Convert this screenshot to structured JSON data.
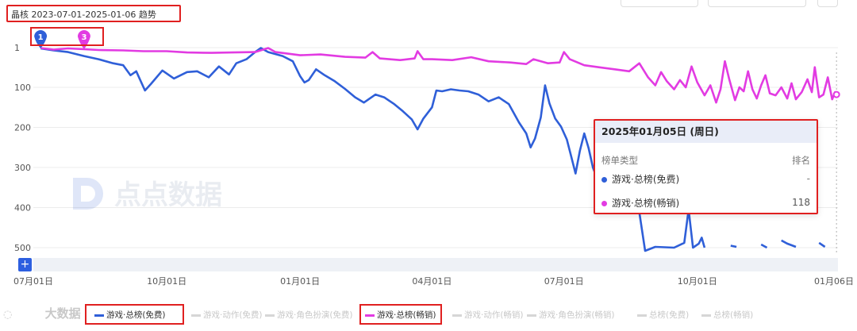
{
  "header": {
    "title": "晶核 2023-07-01-2025-01-06 趋势"
  },
  "markers": [
    {
      "label": "1",
      "color": "#2f5fd8"
    },
    {
      "label": "3",
      "color": "#e23be2"
    }
  ],
  "watermark": {
    "logo_text": "点点数据",
    "bottom_text": "大数据"
  },
  "tooltip": {
    "date": "2025年01月05日 (周日)",
    "col_type": "榜单类型",
    "col_rank": "排名",
    "rows": [
      {
        "name": "游戏·总榜(免费)",
        "value": "-",
        "color": "#2f5fd8"
      },
      {
        "name": "游戏·总榜(畅销)",
        "value": "118",
        "color": "#e23be2"
      }
    ]
  },
  "slider": {
    "plus": "+"
  },
  "legend": [
    {
      "label": "游戏·总榜(免费)",
      "active": true,
      "color": "#2f5fd8"
    },
    {
      "label": "游戏·动作(免费)",
      "active": false
    },
    {
      "label": "游戏·角色扮演(免费)",
      "active": false
    },
    {
      "label": "游戏·总榜(畅销)",
      "active": true,
      "color": "#e23be2"
    },
    {
      "label": "游戏·动作(畅销)",
      "active": false
    },
    {
      "label": "游戏·角色扮演(畅销)",
      "active": false
    },
    {
      "label": "总榜(免费)",
      "active": false
    },
    {
      "label": "总榜(畅销)",
      "active": false
    }
  ],
  "chart_data": {
    "type": "line",
    "y_inverted": true,
    "ylim": [
      1,
      500
    ],
    "y_ticks": [
      "1",
      "100",
      "200",
      "300",
      "400",
      "500"
    ],
    "x_range": [
      "2023-07-01",
      "2025-01-06"
    ],
    "x_ticks": [
      {
        "label": "07月01日",
        "date": "2023-07-01"
      },
      {
        "label": "10月01日",
        "date": "2023-10-01"
      },
      {
        "label": "01月01日",
        "date": "2024-01-01"
      },
      {
        "label": "04月01日",
        "date": "2024-04-01"
      },
      {
        "label": "07月01日",
        "date": "2024-07-01"
      },
      {
        "label": "10月01日",
        "date": "2024-10-01"
      },
      {
        "label": "01月06日",
        "date": "2025-01-06"
      }
    ],
    "series": [
      {
        "name": "游戏·总榜(免费)",
        "color": "#2f5fd8",
        "points": [
          [
            "2023-07-06",
            3
          ],
          [
            "2023-07-15",
            8
          ],
          [
            "2023-07-25",
            12
          ],
          [
            "2023-08-05",
            22
          ],
          [
            "2023-08-15",
            30
          ],
          [
            "2023-08-25",
            40
          ],
          [
            "2023-09-01",
            45
          ],
          [
            "2023-09-06",
            70
          ],
          [
            "2023-09-10",
            60
          ],
          [
            "2023-09-16",
            108
          ],
          [
            "2023-09-20",
            92
          ],
          [
            "2023-09-28",
            58
          ],
          [
            "2023-10-06",
            78
          ],
          [
            "2023-10-15",
            62
          ],
          [
            "2023-10-22",
            60
          ],
          [
            "2023-10-30",
            75
          ],
          [
            "2023-11-06",
            48
          ],
          [
            "2023-11-13",
            68
          ],
          [
            "2023-11-18",
            40
          ],
          [
            "2023-11-25",
            30
          ],
          [
            "2023-12-01",
            12
          ],
          [
            "2023-12-05",
            2
          ],
          [
            "2023-12-10",
            12
          ],
          [
            "2023-12-20",
            22
          ],
          [
            "2023-12-27",
            35
          ],
          [
            "2024-01-01",
            72
          ],
          [
            "2024-01-04",
            88
          ],
          [
            "2024-01-07",
            82
          ],
          [
            "2024-01-12",
            55
          ],
          [
            "2024-01-18",
            70
          ],
          [
            "2024-01-25",
            85
          ],
          [
            "2024-02-01",
            104
          ],
          [
            "2024-02-08",
            125
          ],
          [
            "2024-02-14",
            138
          ],
          [
            "2024-02-22",
            118
          ],
          [
            "2024-02-28",
            125
          ],
          [
            "2024-03-06",
            142
          ],
          [
            "2024-03-12",
            160
          ],
          [
            "2024-03-18",
            180
          ],
          [
            "2024-03-22",
            205
          ],
          [
            "2024-03-26",
            178
          ],
          [
            "2024-04-01",
            150
          ],
          [
            "2024-04-04",
            108
          ],
          [
            "2024-04-08",
            110
          ],
          [
            "2024-04-14",
            105
          ],
          [
            "2024-04-20",
            108
          ],
          [
            "2024-04-26",
            110
          ],
          [
            "2024-05-03",
            118
          ],
          [
            "2024-05-10",
            135
          ],
          [
            "2024-05-17",
            125
          ],
          [
            "2024-05-24",
            142
          ],
          [
            "2024-05-31",
            188
          ],
          [
            "2024-06-05",
            215
          ],
          [
            "2024-06-08",
            250
          ],
          [
            "2024-06-11",
            228
          ],
          [
            "2024-06-15",
            175
          ],
          [
            "2024-06-18",
            95
          ],
          [
            "2024-06-21",
            140
          ],
          [
            "2024-06-25",
            178
          ],
          [
            "2024-06-29",
            198
          ],
          [
            "2024-07-03",
            230
          ],
          [
            "2024-07-06",
            272
          ],
          [
            "2024-07-09",
            315
          ],
          [
            "2024-07-12",
            258
          ],
          [
            "2024-07-15",
            215
          ],
          [
            "2024-07-18",
            252
          ],
          [
            "2024-07-21",
            300
          ],
          [
            "2024-07-24",
            328
          ],
          [
            "2024-07-27",
            242
          ],
          [
            "2024-07-30",
            185
          ],
          [
            "2024-08-02",
            265
          ],
          [
            "2024-08-05",
            290
          ],
          [
            "2024-08-15",
            295
          ],
          [
            "2024-08-22",
            412
          ],
          [
            "2024-08-26",
            508
          ],
          [
            "2024-09-02",
            498
          ],
          [
            "2024-09-15",
            500
          ],
          [
            "2024-09-22",
            488
          ],
          [
            "2024-09-25",
            405
          ],
          [
            "2024-09-28",
            500
          ],
          [
            "2024-10-02",
            490
          ],
          [
            "2024-10-04",
            475
          ],
          [
            "2024-10-06",
            500
          ]
        ],
        "segments": [
          [
            [
              "2024-10-24",
              495
            ],
            [
              "2024-10-28",
              498
            ]
          ],
          [
            [
              "2024-11-14",
              492
            ],
            [
              "2024-11-18",
              500
            ]
          ],
          [
            [
              "2024-11-28",
              482
            ],
            [
              "2024-12-02",
              490
            ],
            [
              "2024-12-08",
              498
            ]
          ],
          [
            [
              "2024-12-24",
              488
            ],
            [
              "2024-12-28",
              498
            ]
          ]
        ]
      },
      {
        "name": "游戏·总榜(畅销)",
        "color": "#e23be2",
        "points": [
          [
            "2023-07-06",
            2
          ],
          [
            "2023-07-15",
            6
          ],
          [
            "2023-07-25",
            3
          ],
          [
            "2023-08-05",
            5
          ],
          [
            "2023-08-15",
            7
          ],
          [
            "2023-09-01",
            8
          ],
          [
            "2023-09-15",
            10
          ],
          [
            "2023-10-01",
            10
          ],
          [
            "2023-10-15",
            13
          ],
          [
            "2023-11-01",
            14
          ],
          [
            "2023-11-15",
            13
          ],
          [
            "2023-12-01",
            12
          ],
          [
            "2023-12-10",
            2
          ],
          [
            "2023-12-15",
            12
          ],
          [
            "2024-01-01",
            20
          ],
          [
            "2024-01-15",
            18
          ],
          [
            "2024-02-01",
            24
          ],
          [
            "2024-02-15",
            26
          ],
          [
            "2024-02-20",
            12
          ],
          [
            "2024-02-25",
            28
          ],
          [
            "2024-03-10",
            32
          ],
          [
            "2024-03-20",
            28
          ],
          [
            "2024-03-22",
            10
          ],
          [
            "2024-03-26",
            30
          ],
          [
            "2024-04-01",
            30
          ],
          [
            "2024-04-15",
            32
          ],
          [
            "2024-04-28",
            25
          ],
          [
            "2024-05-10",
            35
          ],
          [
            "2024-05-25",
            38
          ],
          [
            "2024-06-05",
            42
          ],
          [
            "2024-06-10",
            30
          ],
          [
            "2024-06-20",
            40
          ],
          [
            "2024-06-28",
            38
          ],
          [
            "2024-07-01",
            12
          ],
          [
            "2024-07-05",
            30
          ],
          [
            "2024-07-15",
            45
          ],
          [
            "2024-07-25",
            50
          ],
          [
            "2024-08-05",
            55
          ],
          [
            "2024-08-15",
            60
          ],
          [
            "2024-08-22",
            40
          ],
          [
            "2024-08-28",
            75
          ],
          [
            "2024-09-02",
            95
          ],
          [
            "2024-09-06",
            62
          ],
          [
            "2024-09-10",
            85
          ],
          [
            "2024-09-15",
            105
          ],
          [
            "2024-09-19",
            82
          ],
          [
            "2024-09-23",
            100
          ],
          [
            "2024-09-27",
            48
          ],
          [
            "2024-10-01",
            88
          ],
          [
            "2024-10-06",
            120
          ],
          [
            "2024-10-10",
            95
          ],
          [
            "2024-10-14",
            138
          ],
          [
            "2024-10-17",
            105
          ],
          [
            "2024-10-20",
            35
          ],
          [
            "2024-10-23",
            80
          ],
          [
            "2024-10-27",
            132
          ],
          [
            "2024-10-30",
            100
          ],
          [
            "2024-11-02",
            110
          ],
          [
            "2024-11-05",
            60
          ],
          [
            "2024-11-08",
            105
          ],
          [
            "2024-11-11",
            128
          ],
          [
            "2024-11-14",
            95
          ],
          [
            "2024-11-17",
            70
          ],
          [
            "2024-11-20",
            115
          ],
          [
            "2024-11-24",
            120
          ],
          [
            "2024-11-28",
            100
          ],
          [
            "2024-12-02",
            128
          ],
          [
            "2024-12-05",
            90
          ],
          [
            "2024-12-08",
            130
          ],
          [
            "2024-12-12",
            112
          ],
          [
            "2024-12-16",
            80
          ],
          [
            "2024-12-19",
            112
          ],
          [
            "2024-12-21",
            50
          ],
          [
            "2024-12-24",
            125
          ],
          [
            "2024-12-27",
            118
          ],
          [
            "2024-12-30",
            75
          ],
          [
            "2025-01-02",
            130
          ],
          [
            "2025-01-04",
            112
          ],
          [
            "2025-01-05",
            118
          ],
          [
            "2025-01-06",
            115
          ]
        ]
      }
    ]
  }
}
